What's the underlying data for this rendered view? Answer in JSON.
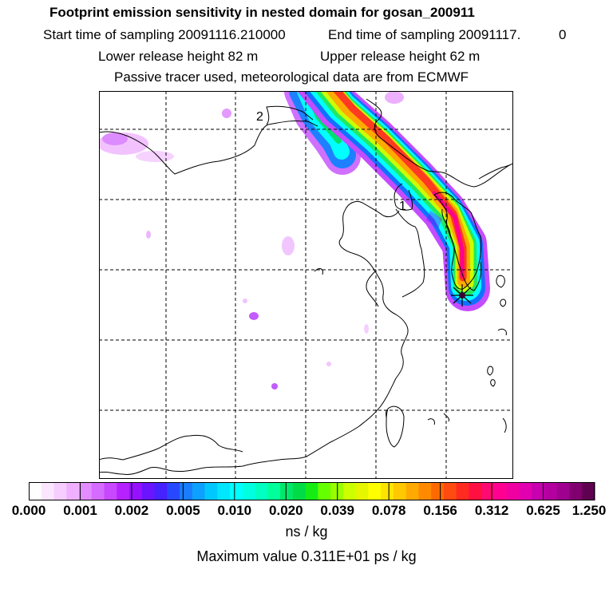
{
  "header": {
    "title": "Footprint emission sensitivity in nested domain for gosan_200911",
    "start_label": "Start time of sampling 20091116.210000",
    "end_label": "End time of sampling 20091117.",
    "end_value": "0",
    "lower_label": "Lower release height   82 m",
    "upper_label": "Upper release height   62 m",
    "tracer_label": "Passive tracer used, meteorological data are from ECMWF"
  },
  "map": {
    "label_1": "1",
    "label_2": "2",
    "grid_style": "dashed",
    "colors": {
      "coast": "#000000",
      "grid": "#000000",
      "frame": "#000000"
    }
  },
  "colorbar": {
    "tick_labels": [
      "0.000",
      "0.001",
      "0.002",
      "0.005",
      "0.010",
      "0.020",
      "0.039",
      "0.078",
      "0.156",
      "0.312",
      "0.625",
      "1.250"
    ],
    "colors": [
      "#ffffff",
      "#fbe6ff",
      "#f6cdff",
      "#efb1ff",
      "#e28cff",
      "#d56bff",
      "#c748ff",
      "#b522ff",
      "#9611ff",
      "#6a14ff",
      "#4622ff",
      "#2848ff",
      "#1a7cff",
      "#0ea0ff",
      "#00c8ff",
      "#00e6ff",
      "#00ffff",
      "#00ffe0",
      "#00ffc0",
      "#00ff9a",
      "#00e86a",
      "#00dc46",
      "#14ec14",
      "#66ff00",
      "#9aff00",
      "#ccff00",
      "#e6f600",
      "#ffff00",
      "#ffe400",
      "#ffc800",
      "#ffaa00",
      "#ff8a00",
      "#ff6a00",
      "#ff4a10",
      "#ff2a20",
      "#ff1040",
      "#ff0a70",
      "#ff0090",
      "#f000a0",
      "#e000b0",
      "#c800b0",
      "#b400a0",
      "#a00090",
      "#800070",
      "#600050"
    ],
    "units": "ns / kg"
  },
  "footer": {
    "max_value": "Maximum value  0.311E+01 ps / kg"
  }
}
